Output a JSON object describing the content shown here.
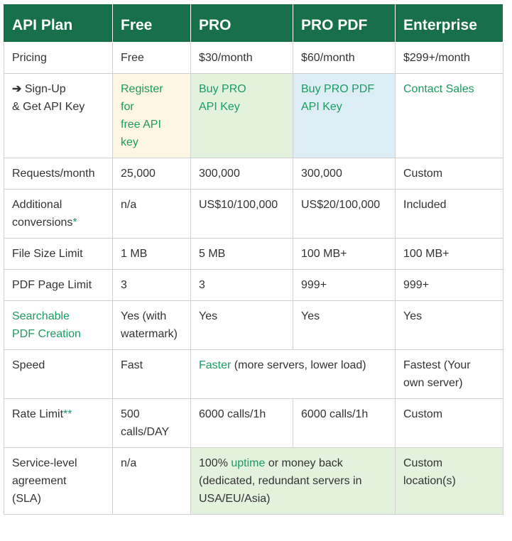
{
  "header": {
    "col0": "API Plan",
    "col1": "Free",
    "col2": "PRO",
    "col3": "PRO PDF",
    "col4": "Enterprise"
  },
  "pricing": {
    "label": "Pricing",
    "free": "Free",
    "pro": "$30/month",
    "pro_pdf": "$60/month",
    "enterprise": "$299+/month"
  },
  "signup": {
    "arrow": "➔",
    "label_line1": "Sign-Up",
    "label_line2": "& Get API Key",
    "free_line1": "Register",
    "free_line2": "for",
    "free_line3": "free API",
    "free_line4": "key",
    "pro_line1": "Buy PRO",
    "pro_line2": "API Key",
    "pro_pdf_line1": "Buy PRO PDF",
    "pro_pdf_line2": "API Key",
    "enterprise": "Contact Sales"
  },
  "requests": {
    "label": "Requests/month",
    "free": "25,000",
    "pro": "300,000",
    "pro_pdf": "300,000",
    "enterprise": "Custom"
  },
  "additional": {
    "label_line1": "Additional",
    "label_line2": "conversions",
    "asterisk": "*",
    "free": "n/a",
    "pro": "US$10/100,000",
    "pro_pdf": "US$20/100,000",
    "enterprise": "Included"
  },
  "filesize": {
    "label": "File Size Limit",
    "free": "1 MB",
    "pro": "5 MB",
    "pro_pdf": "100 MB+",
    "enterprise": "100 MB+"
  },
  "pagelimit": {
    "label": "PDF Page Limit",
    "free": "3",
    "pro": "3",
    "pro_pdf": "999+",
    "enterprise": "999+"
  },
  "searchable": {
    "label_line1": "Searchable",
    "label_line2": "PDF Creation",
    "free_line1": "Yes (with",
    "free_line2": "watermark)",
    "pro": "Yes",
    "pro_pdf": "Yes",
    "enterprise": "Yes"
  },
  "speed": {
    "label": "Speed",
    "free": "Fast",
    "pro_link": "Faster",
    "pro_rest": " (more servers, lower load)",
    "enterprise_line1": "Fastest (Your",
    "enterprise_line2": "own server)"
  },
  "ratelimit": {
    "label": "Rate Limit",
    "asterisks": "**",
    "free_line1": "500",
    "free_line2": "calls/DAY",
    "pro": "6000 calls/1h",
    "pro_pdf": "6000 calls/1h",
    "enterprise": "Custom"
  },
  "sla": {
    "label_line1": "Service-level",
    "label_line2": "agreement",
    "label_line3": "(SLA)",
    "free": "n/a",
    "pro_part1": "100% ",
    "pro_link": "uptime",
    "pro_part2": " or money back",
    "pro_line2": "(dedicated, redundant servers in",
    "pro_line3": "USA/EU/Asia)",
    "enterprise_line1": "Custom",
    "enterprise_line2": "location(s)"
  }
}
